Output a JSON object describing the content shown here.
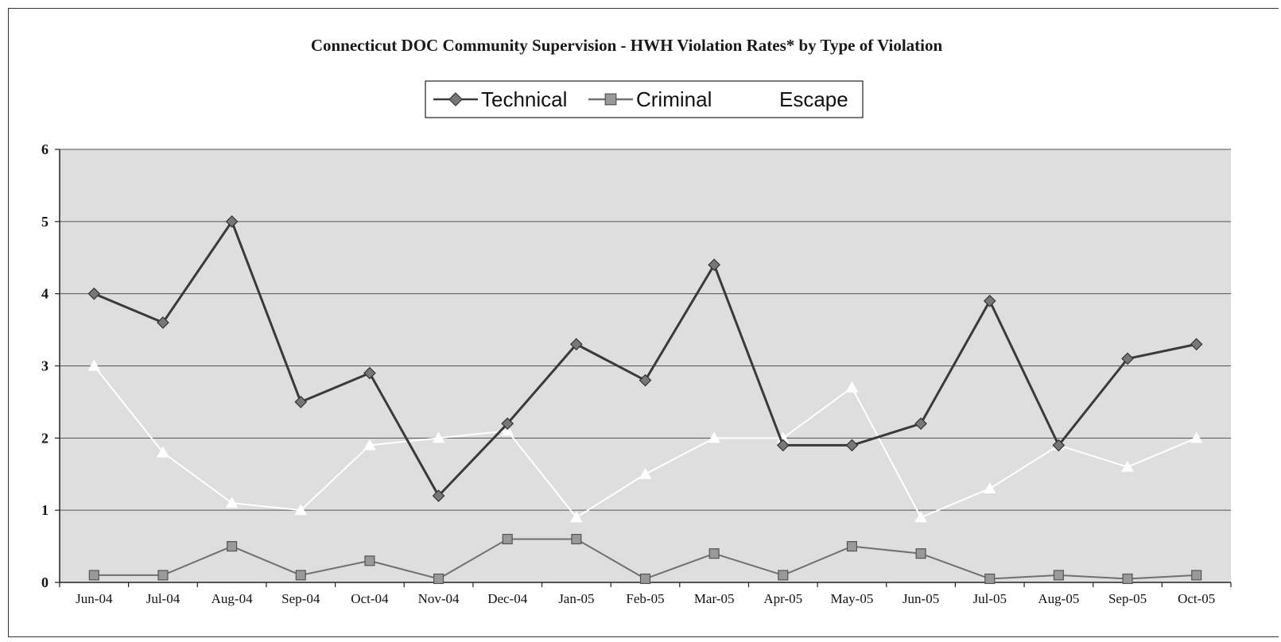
{
  "chart_data": {
    "type": "line",
    "title": "Connecticut DOC Community Supervision - HWH Violation Rates* by Type of Violation",
    "categories": [
      "Jun-04",
      "Jul-04",
      "Aug-04",
      "Sep-04",
      "Oct-04",
      "Nov-04",
      "Dec-04",
      "Jan-05",
      "Feb-05",
      "Mar-05",
      "Apr-05",
      "May-05",
      "Jun-05",
      "Jul-05",
      "Aug-05",
      "Sep-05",
      "Oct-05"
    ],
    "series": [
      {
        "name": "Technical",
        "color": "#555555",
        "marker": "diamond",
        "values": [
          4.0,
          3.6,
          5.0,
          2.5,
          2.9,
          1.2,
          2.2,
          3.3,
          2.8,
          4.4,
          1.9,
          1.9,
          2.2,
          3.9,
          1.9,
          3.1,
          3.3
        ]
      },
      {
        "name": "Criminal",
        "color": "#888888",
        "marker": "square",
        "values": [
          0.1,
          0.1,
          0.5,
          0.1,
          0.3,
          0.05,
          0.6,
          0.6,
          0.05,
          0.4,
          0.1,
          0.5,
          0.4,
          0.05,
          0.1,
          0.05,
          0.1
        ]
      },
      {
        "name": "Escape",
        "color": "#ffffff",
        "marker": "triangle",
        "values": [
          3.0,
          1.8,
          1.1,
          1.0,
          1.9,
          2.0,
          2.1,
          0.9,
          1.5,
          2.0,
          2.0,
          2.7,
          0.9,
          1.3,
          1.9,
          1.6,
          2.0
        ]
      }
    ],
    "ylim": [
      0,
      6
    ],
    "yticks": [
      "0",
      "1",
      "2",
      "3",
      "4",
      "5",
      "6"
    ],
    "grid": true,
    "legend_position": "top-center",
    "plot_background": "#dedede"
  }
}
